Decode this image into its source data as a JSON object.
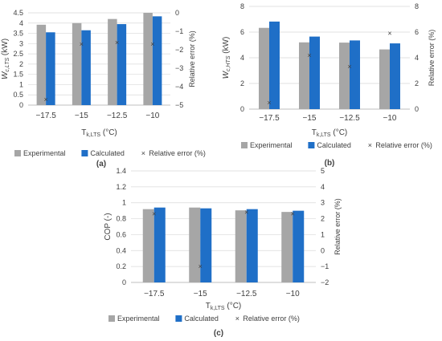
{
  "colors": {
    "experimental": "#a6a6a6",
    "calculated": "#1f6fc7",
    "error_marker": "#404040",
    "grid": "#d9d9d9",
    "axis": "#bfbfbf",
    "text": "#404040"
  },
  "panel_labels": [
    "(a)",
    "(b)",
    "(c)"
  ],
  "chart_data": [
    {
      "type": "bar",
      "panel": "(a)",
      "categories": [
        "−17.5",
        "−15",
        "−12.5",
        "−10"
      ],
      "xlabel_main": "T",
      "xlabel_sub": "k,LTS",
      "xlabel_unit": " (°C)",
      "ylabel_main": "W",
      "ylabel_sub": "c,LTS",
      "ylabel_unit": " (kW)",
      "y2label": "Relative error (%)",
      "ylim": [
        0,
        4.5
      ],
      "yticks": [
        0,
        0.5,
        1,
        1.5,
        2,
        2.5,
        3,
        3.5,
        4,
        4.5
      ],
      "ytick_labels": [
        "0",
        "0.5",
        "1",
        "1.5",
        "2",
        "2.5",
        "3",
        "3.5",
        "4",
        "4.5"
      ],
      "y2lim": [
        -5,
        0
      ],
      "y2ticks": [
        -5,
        -4,
        -3,
        -2,
        -1,
        0
      ],
      "y2tick_labels": [
        "−5",
        "−4",
        "−3",
        "−2",
        "−1",
        "0"
      ],
      "series": [
        {
          "name": "Experimental",
          "values": [
            3.92,
            4.0,
            4.2,
            4.5
          ]
        },
        {
          "name": "Calculated",
          "values": [
            3.55,
            3.65,
            3.95,
            4.33
          ]
        }
      ],
      "relative_error": {
        "name": "Relative error (%)",
        "values": [
          -4.7,
          -1.7,
          -1.6,
          -1.7
        ]
      },
      "legend": [
        "Experimental",
        "Calculated",
        "Relative error (%)"
      ]
    },
    {
      "type": "bar",
      "panel": "(b)",
      "categories": [
        "−17.5",
        "−15",
        "−12.5",
        "−10"
      ],
      "xlabel_main": "T",
      "xlabel_sub": "k,LTS",
      "xlabel_unit": " (°C)",
      "ylabel_main": "W",
      "ylabel_sub": "c,HTS",
      "ylabel_unit": " (kW)",
      "y2label": "Relative error (%)",
      "ylim": [
        0,
        8
      ],
      "yticks": [
        0,
        2,
        4,
        6,
        8
      ],
      "ytick_labels": [
        "0",
        "2",
        "4",
        "6",
        "8"
      ],
      "y2lim": [
        0,
        8
      ],
      "y2ticks": [
        0,
        2,
        4,
        6,
        8
      ],
      "y2tick_labels": [
        "0",
        "2",
        "4",
        "6",
        "8"
      ],
      "series": [
        {
          "name": "Experimental",
          "values": [
            6.33,
            5.2,
            5.18,
            4.65
          ]
        },
        {
          "name": "Calculated",
          "values": [
            6.82,
            5.65,
            5.35,
            5.12
          ]
        }
      ],
      "relative_error": {
        "name": "Relative error (%)",
        "values": [
          0.5,
          4.2,
          3.3,
          5.9
        ]
      },
      "legend": [
        "Experimental",
        "Calculated",
        "Relative error (%)"
      ]
    },
    {
      "type": "bar",
      "panel": "(c)",
      "categories": [
        "−17.5",
        "−15",
        "−12.5",
        "−10"
      ],
      "xlabel_main": "T",
      "xlabel_sub": "k,LTS",
      "xlabel_unit": " (°C)",
      "ylabel_main": "COP (-)",
      "ylabel_sub": "",
      "ylabel_unit": "",
      "y2label": "Relative error (%)",
      "ylim": [
        0,
        1.4
      ],
      "yticks": [
        0,
        0.2,
        0.4,
        0.6,
        0.8,
        1,
        1.2,
        1.4
      ],
      "ytick_labels": [
        "0",
        "0.2",
        "0.4",
        "0.6",
        "0.8",
        "1",
        "1.2",
        "1.4"
      ],
      "y2lim": [
        -2,
        5
      ],
      "y2ticks": [
        -2,
        -1,
        0,
        1,
        2,
        3,
        4,
        5
      ],
      "y2tick_labels": [
        "−2",
        "−1",
        "0",
        "1",
        "2",
        "3",
        "4",
        "5"
      ],
      "series": [
        {
          "name": "Experimental",
          "values": [
            0.92,
            0.94,
            0.905,
            0.885
          ]
        },
        {
          "name": "Calculated",
          "values": [
            0.94,
            0.93,
            0.92,
            0.9
          ]
        }
      ],
      "relative_error": {
        "name": "Relative error (%)",
        "values": [
          2.3,
          -1.0,
          2.4,
          2.3
        ]
      },
      "legend": [
        "Experimental",
        "Calculated",
        "Relative error (%)"
      ]
    }
  ]
}
